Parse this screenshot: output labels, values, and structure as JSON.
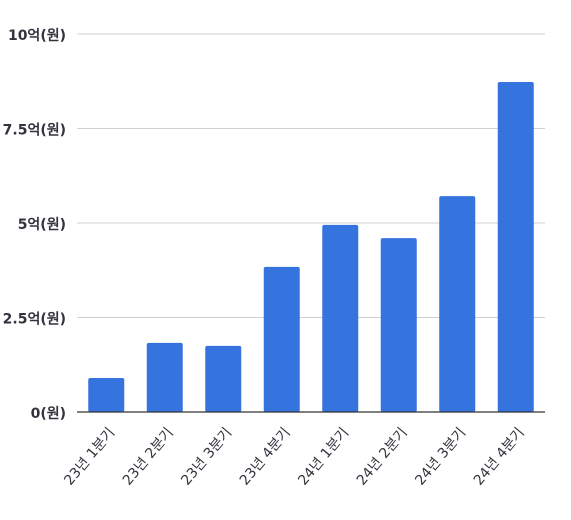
{
  "chart_data": {
    "type": "bar",
    "categories": [
      "23년 1분기",
      "23년 2분기",
      "23년 3분기",
      "23년 4분기",
      "24년 1분기",
      "24년 2분기",
      "24년 3분기",
      "24년 4분기"
    ],
    "values": [
      0.9,
      1.83,
      1.75,
      3.84,
      4.95,
      4.6,
      5.71,
      8.73
    ],
    "color": "#3574de",
    "ylim": [
      0,
      10
    ],
    "yticks": [
      {
        "value": 0,
        "label": "0(원)"
      },
      {
        "value": 2.5,
        "label": "2.5억(원)"
      },
      {
        "value": 5,
        "label": "5억(원)"
      },
      {
        "value": 7.5,
        "label": "7.5억(원)"
      },
      {
        "value": 10,
        "label": "10억(원)"
      }
    ],
    "grid": true
  }
}
